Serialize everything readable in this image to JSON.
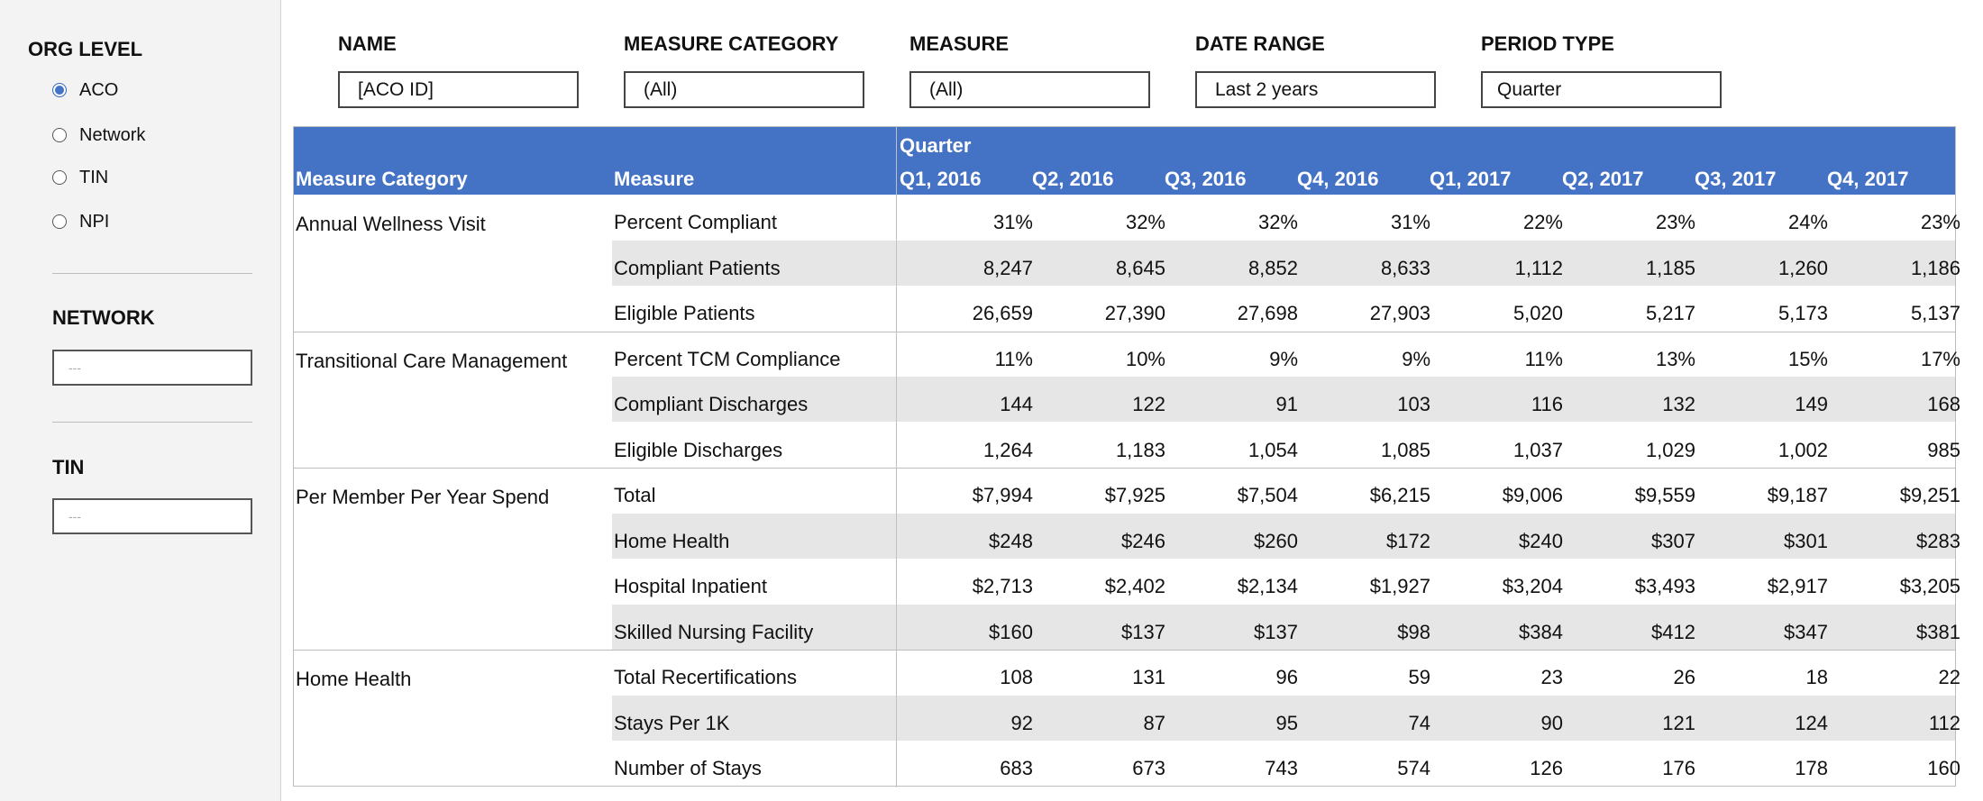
{
  "sidebar": {
    "org_level_title": "ORG LEVEL",
    "org_levels": [
      {
        "label": "ACO",
        "checked": true
      },
      {
        "label": "Network",
        "checked": false
      },
      {
        "label": "TIN",
        "checked": false
      },
      {
        "label": "NPI",
        "checked": false
      }
    ],
    "network_title": "NETWORK",
    "network_placeholder": "---",
    "tin_title": "TIN",
    "tin_placeholder": "---"
  },
  "filters": [
    {
      "label": "NAME",
      "value": "[ACO ID]"
    },
    {
      "label": "MEASURE CATEGORY",
      "value": "(All)"
    },
    {
      "label": "MEASURE",
      "value": "(All)"
    },
    {
      "label": "DATE RANGE",
      "value": "Last 2 years"
    },
    {
      "label": "PERIOD TYPE",
      "value": "Quarter"
    }
  ],
  "table": {
    "header": {
      "category": "Measure Category",
      "measure": "Measure",
      "group": "Quarter",
      "periods": [
        "Q1, 2016",
        "Q2, 2016",
        "Q3, 2016",
        "Q4, 2016",
        "Q1, 2017",
        "Q2, 2017",
        "Q3, 2017",
        "Q4, 2017"
      ]
    },
    "groups": [
      {
        "category": "Annual Wellness Visit",
        "rows": [
          {
            "measure": "Percent Compliant",
            "values": [
              "31%",
              "32%",
              "32%",
              "31%",
              "22%",
              "23%",
              "24%",
              "23%"
            ]
          },
          {
            "measure": "Compliant Patients",
            "values": [
              "8,247",
              "8,645",
              "8,852",
              "8,633",
              "1,112",
              "1,185",
              "1,260",
              "1,186"
            ]
          },
          {
            "measure": "Eligible Patients",
            "values": [
              "26,659",
              "27,390",
              "27,698",
              "27,903",
              "5,020",
              "5,217",
              "5,173",
              "5,137"
            ]
          }
        ]
      },
      {
        "category": "Transitional Care Management",
        "rows": [
          {
            "measure": "Percent TCM Compliance",
            "values": [
              "11%",
              "10%",
              "9%",
              "9%",
              "11%",
              "13%",
              "15%",
              "17%"
            ]
          },
          {
            "measure": "Compliant Discharges",
            "values": [
              "144",
              "122",
              "91",
              "103",
              "116",
              "132",
              "149",
              "168"
            ]
          },
          {
            "measure": "Eligible Discharges",
            "values": [
              "1,264",
              "1,183",
              "1,054",
              "1,085",
              "1,037",
              "1,029",
              "1,002",
              "985"
            ]
          }
        ]
      },
      {
        "category": "Per Member Per Year Spend",
        "rows": [
          {
            "measure": "Total",
            "values": [
              "$7,994",
              "$7,925",
              "$7,504",
              "$6,215",
              "$9,006",
              "$9,559",
              "$9,187",
              "$9,251"
            ]
          },
          {
            "measure": "Home Health",
            "values": [
              "$248",
              "$246",
              "$260",
              "$172",
              "$240",
              "$307",
              "$301",
              "$283"
            ]
          },
          {
            "measure": "Hospital Inpatient",
            "values": [
              "$2,713",
              "$2,402",
              "$2,134",
              "$1,927",
              "$3,204",
              "$3,493",
              "$2,917",
              "$3,205"
            ]
          },
          {
            "measure": "Skilled Nursing Facility",
            "values": [
              "$160",
              "$137",
              "$137",
              "$98",
              "$384",
              "$412",
              "$347",
              "$381"
            ]
          }
        ]
      },
      {
        "category": "Home Health",
        "rows": [
          {
            "measure": "Total Recertifications",
            "values": [
              "108",
              "131",
              "96",
              "59",
              "23",
              "26",
              "18",
              "22"
            ]
          },
          {
            "measure": "Stays Per 1K",
            "values": [
              "92",
              "87",
              "95",
              "74",
              "90",
              "121",
              "124",
              "112"
            ]
          },
          {
            "measure": "Number of Stays",
            "values": [
              "683",
              "673",
              "743",
              "574",
              "126",
              "176",
              "178",
              "160"
            ]
          }
        ]
      }
    ]
  }
}
